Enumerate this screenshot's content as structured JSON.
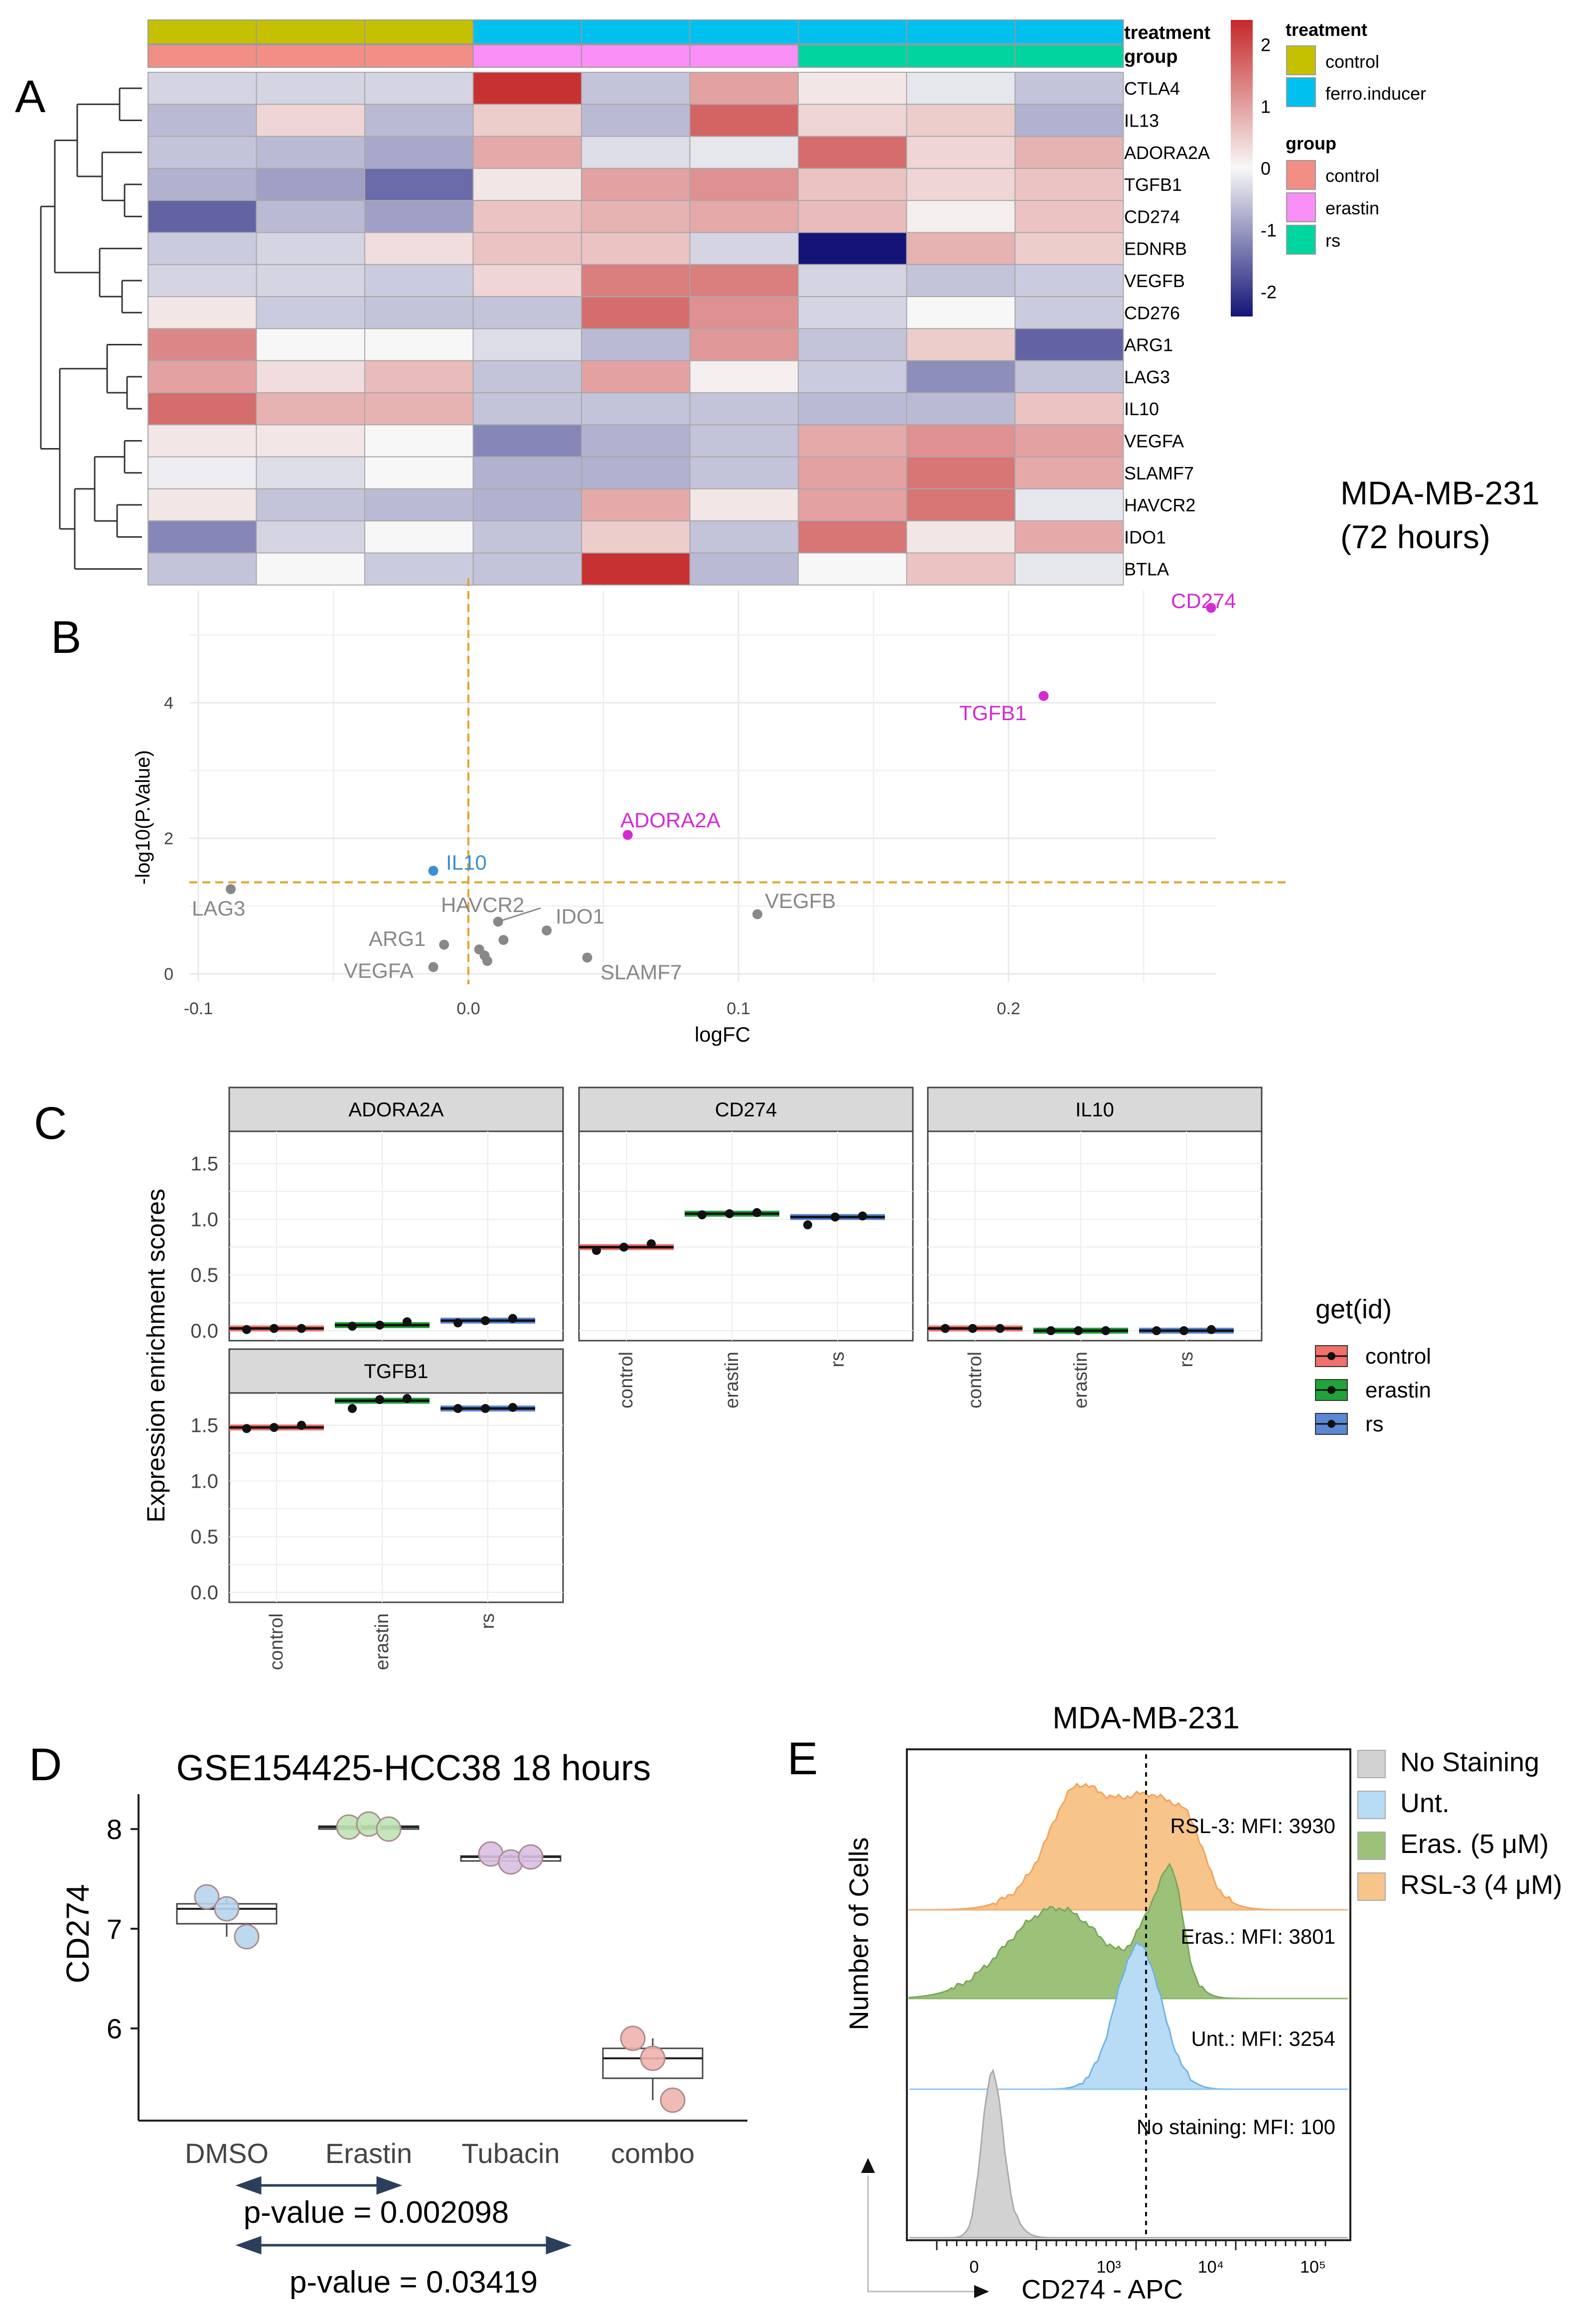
{
  "panel_letters": [
    "A",
    "B",
    "C",
    "D",
    "E"
  ],
  "heatmap": {
    "genes": [
      "CTLA4",
      "IL13",
      "ADORA2A",
      "TGFB1",
      "CD274",
      "EDNRB",
      "VEGFB",
      "CD276",
      "ARG1",
      "LAG3",
      "IL10",
      "VEGFA",
      "SLAMF7",
      "HAVCR2",
      "IDO1",
      "BTLA"
    ],
    "treatment_label": "treatment",
    "group_label": "group",
    "treatment_bar": [
      "control",
      "control",
      "control",
      "ferro.inducer",
      "ferro.inducer",
      "ferro.inducer",
      "ferro.inducer",
      "ferro.inducer",
      "ferro.inducer"
    ],
    "group_bar": [
      "control",
      "control",
      "control",
      "erastin",
      "erastin",
      "erastin",
      "rs",
      "rs",
      "rs"
    ],
    "values": [
      [
        -0.4,
        -0.4,
        -0.4,
        2.3,
        -0.6,
        1.0,
        0.2,
        -0.2,
        -0.6
      ],
      [
        -0.7,
        0.4,
        -0.7,
        0.5,
        -0.7,
        1.7,
        0.4,
        0.5,
        -0.8
      ],
      [
        -0.6,
        -0.7,
        -0.9,
        0.9,
        -0.3,
        -0.2,
        1.6,
        0.4,
        0.8
      ],
      [
        -0.8,
        -1.0,
        -1.6,
        0.2,
        1.0,
        1.2,
        0.6,
        0.4,
        0.6
      ],
      [
        -1.7,
        -0.7,
        -1.0,
        0.6,
        0.8,
        0.9,
        0.7,
        0.1,
        0.6
      ],
      [
        -0.5,
        -0.4,
        0.3,
        0.6,
        0.6,
        -0.4,
        -2.6,
        0.8,
        0.5
      ],
      [
        -0.4,
        -0.4,
        -0.5,
        0.4,
        1.4,
        1.4,
        -0.4,
        -0.6,
        -0.5
      ],
      [
        0.2,
        -0.5,
        -0.6,
        -0.6,
        1.6,
        1.2,
        -0.4,
        0.0,
        -0.5
      ],
      [
        1.3,
        0.0,
        0.0,
        -0.3,
        -0.7,
        1.1,
        -0.6,
        0.5,
        -1.7
      ],
      [
        1.0,
        0.3,
        0.7,
        -0.6,
        1.0,
        0.1,
        -0.5,
        -1.2,
        -0.6
      ],
      [
        1.6,
        0.8,
        0.8,
        -0.6,
        -0.6,
        -0.6,
        -0.7,
        -0.7,
        0.6
      ],
      [
        0.2,
        0.2,
        0.0,
        -1.3,
        -0.8,
        -0.6,
        0.9,
        1.2,
        1.0
      ],
      [
        -0.1,
        -0.3,
        0.0,
        -0.8,
        -0.8,
        -0.6,
        1.0,
        1.5,
        0.9
      ],
      [
        0.2,
        -0.6,
        -0.7,
        -0.8,
        0.9,
        0.2,
        1.0,
        1.5,
        -0.2
      ],
      [
        -1.3,
        -0.4,
        0.0,
        -0.6,
        0.5,
        -0.6,
        1.5,
        0.2,
        0.9
      ],
      [
        -0.6,
        0.0,
        -0.5,
        -0.6,
        2.3,
        -0.7,
        0.0,
        0.6,
        -0.2
      ]
    ],
    "scale_ticks": [
      "2",
      "1",
      "0",
      "-1",
      "-2"
    ],
    "legend": {
      "treatment_title": "treatment",
      "treatment_items": [
        {
          "label": "control",
          "color": "#c5c100"
        },
        {
          "label": "ferro.inducer",
          "color": "#00c0ef"
        }
      ],
      "group_title": "group",
      "group_items": [
        {
          "label": "control",
          "color": "#f28e86"
        },
        {
          "label": "erastin",
          "color": "#f98ef7"
        },
        {
          "label": "rs",
          "color": "#00d5a0"
        }
      ]
    },
    "cell_line_label": "MDA-MB-231",
    "time_label": "(72 hours)"
  },
  "chart_data": [
    {
      "type": "scatter",
      "panel": "B",
      "title": "",
      "xlabel": "logFC",
      "ylabel": "-log10(P.Value)",
      "xlim": [
        -0.1,
        0.28
      ],
      "ylim": [
        -0.1,
        5.6
      ],
      "xticks": [
        "-0.1",
        "0.0",
        "0.1",
        "0.2"
      ],
      "yticks": [
        "0",
        "2",
        "4"
      ],
      "threshold_y": 1.35,
      "threshold_x": 0.0,
      "points": [
        {
          "label": "CD274",
          "x": 0.275,
          "y": 5.4,
          "color": "#d42ad4"
        },
        {
          "label": "TGFB1",
          "x": 0.213,
          "y": 4.1,
          "color": "#d42ad4"
        },
        {
          "label": "ADORA2A",
          "x": 0.059,
          "y": 2.05,
          "color": "#d42ad4"
        },
        {
          "label": "IL10",
          "x": -0.013,
          "y": 1.52,
          "color": "#3b8fd1"
        },
        {
          "label": "LAG3",
          "x": -0.088,
          "y": 1.25,
          "color": "#888888"
        },
        {
          "label": "VEGFB",
          "x": 0.107,
          "y": 0.88,
          "color": "#888888"
        },
        {
          "label": "HAVCR2",
          "x": 0.011,
          "y": 0.77,
          "color": "#888888"
        },
        {
          "label": "IDO1",
          "x": 0.029,
          "y": 0.64,
          "color": "#888888"
        },
        {
          "label": "ARG1",
          "x": -0.009,
          "y": 0.43,
          "color": "#888888"
        },
        {
          "label": "VEGFA",
          "x": -0.013,
          "y": 0.1,
          "color": "#888888"
        },
        {
          "label": "SLAMF7",
          "x": 0.044,
          "y": 0.24,
          "color": "#888888"
        },
        {
          "label": "",
          "x": 0.004,
          "y": 0.36,
          "color": "#888888"
        },
        {
          "label": "",
          "x": 0.006,
          "y": 0.27,
          "color": "#888888"
        },
        {
          "label": "",
          "x": 0.013,
          "y": 0.5,
          "color": "#888888"
        },
        {
          "label": "",
          "x": 0.007,
          "y": 0.19,
          "color": "#888888"
        }
      ]
    },
    {
      "type": "boxplot",
      "panel": "C",
      "ylabel": "Expression enrichment scores",
      "categories": [
        "control",
        "erastin",
        "rs"
      ],
      "yticks": [
        "0.0",
        "0.5",
        "1.0",
        "1.5"
      ],
      "ylim": [
        -0.1,
        1.7
      ],
      "legend_title": "get(id)",
      "legend": [
        {
          "label": "control",
          "color": "#f0706a"
        },
        {
          "label": "erastin",
          "color": "#1fa33a"
        },
        {
          "label": "rs",
          "color": "#5b88d6"
        }
      ],
      "facets": [
        {
          "name": "ADORA2A",
          "medians": [
            0.02,
            0.05,
            0.09
          ],
          "points": [
            [
              0.01,
              0.02,
              0.02
            ],
            [
              0.04,
              0.05,
              0.08
            ],
            [
              0.07,
              0.09,
              0.11
            ]
          ]
        },
        {
          "name": "CD274",
          "medians": [
            0.75,
            1.05,
            1.02
          ],
          "points": [
            [
              0.72,
              0.75,
              0.78
            ],
            [
              1.04,
              1.05,
              1.06
            ],
            [
              0.95,
              1.02,
              1.03
            ]
          ]
        },
        {
          "name": "IL10",
          "medians": [
            0.02,
            0.0,
            0.0
          ],
          "points": [
            [
              0.02,
              0.02,
              0.02
            ],
            [
              0.0,
              0.0,
              0.0
            ],
            [
              0.0,
              0.0,
              0.01
            ]
          ]
        },
        {
          "name": "TGFB1",
          "medians": [
            1.48,
            1.72,
            1.65
          ],
          "points": [
            [
              1.47,
              1.48,
              1.5
            ],
            [
              1.65,
              1.73,
              1.74
            ],
            [
              1.65,
              1.65,
              1.66
            ]
          ]
        }
      ]
    },
    {
      "type": "boxplot",
      "panel": "D",
      "title": "GSE154425-HCC38 18 hours",
      "ylabel": "CD274",
      "categories": [
        "DMSO",
        "Erastin",
        "Tubacin",
        "combo"
      ],
      "ylim": [
        5.15,
        8.25
      ],
      "yticks": [
        "6",
        "7",
        "8"
      ],
      "colors": [
        "#b7d4ee",
        "#bfe3b4",
        "#d9bfe3",
        "#f1b3ad"
      ],
      "points": [
        [
          7.32,
          7.2,
          6.92
        ],
        [
          8.02,
          8.05,
          8.0
        ],
        [
          7.75,
          7.67,
          7.72
        ],
        [
          5.9,
          5.7,
          5.28
        ]
      ],
      "medians": [
        7.2,
        8.02,
        7.72,
        5.7
      ],
      "q1": [
        7.05,
        8.0,
        7.68,
        5.5
      ],
      "q3": [
        7.25,
        8.03,
        7.73,
        5.8
      ],
      "pvalue_1": "p-value = 0.002098",
      "pvalue_2": "p-value = 0.03419"
    },
    {
      "type": "area",
      "panel": "E",
      "title": "MDA-MB-231",
      "xlabel": "CD274 - APC",
      "ylabel": "Number of Cells",
      "xticks": [
        "0",
        "10³",
        "10⁴",
        "10⁵"
      ],
      "legend": [
        {
          "label": "No Staining",
          "color": "#d2d2d2"
        },
        {
          "label": "Unt.",
          "color": "#b8dcf5"
        },
        {
          "label": "Eras. (5 μM)",
          "color": "#9cc27a"
        },
        {
          "label": "RSL-3 (4 μM)",
          "color": "#f7c48a"
        }
      ],
      "mfi_labels": [
        "RSL-3: MFI: 3930",
        "Eras.: MFI: 3801",
        "Unt.: MFI: 3254",
        "No staining: MFI: 100"
      ]
    }
  ]
}
